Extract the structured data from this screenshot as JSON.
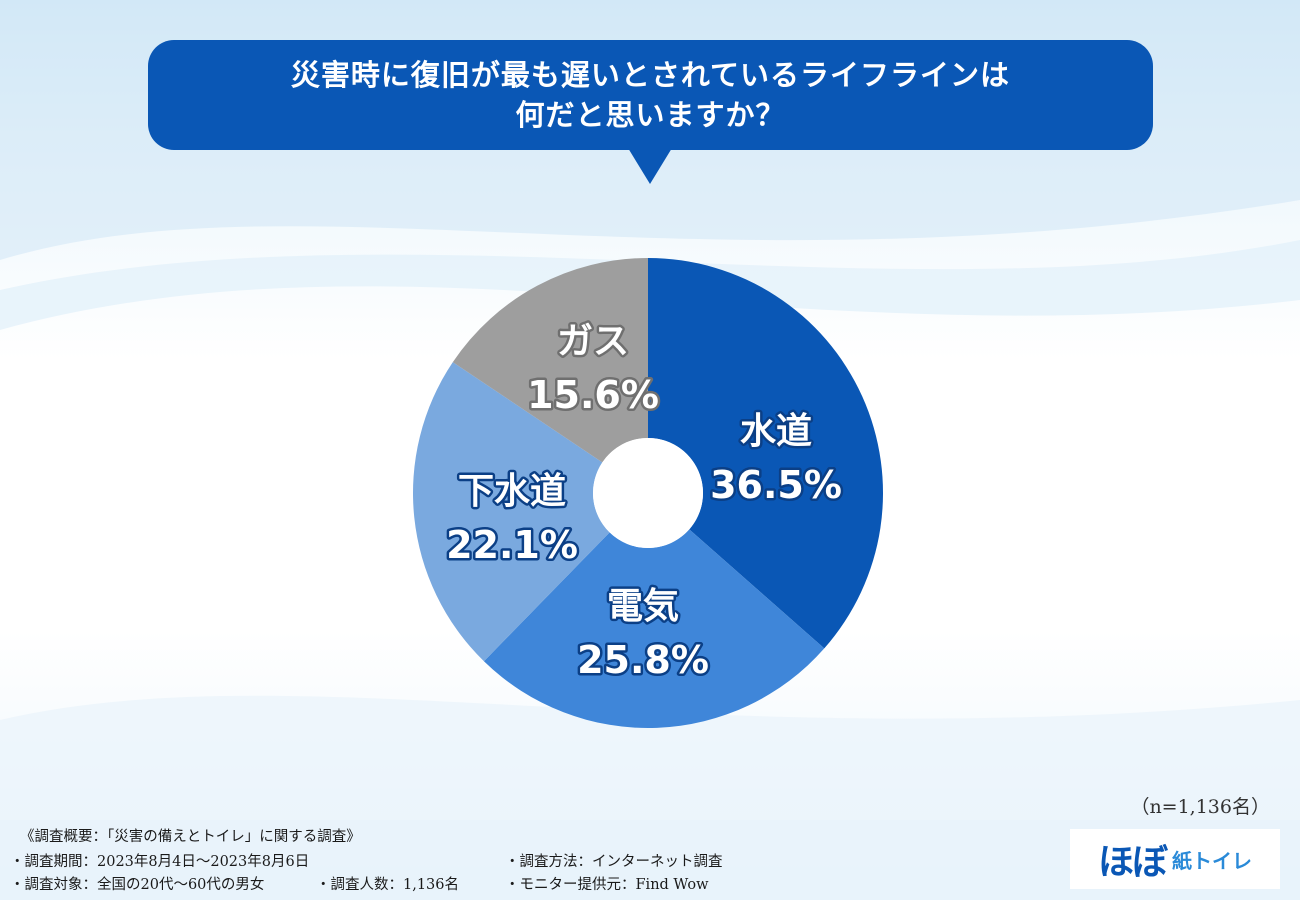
{
  "header": {
    "line1": "災害時に復旧が最も遅いとされているライフラインは",
    "line2": "何だと思いますか？"
  },
  "chart_data": {
    "type": "pie",
    "title": "災害時に復旧が最も遅いとされているライフラインは何だと思いますか？",
    "categories": [
      "水道",
      "電気",
      "下水道",
      "ガス"
    ],
    "values": [
      36.5,
      25.8,
      22.1,
      15.6
    ],
    "value_labels": [
      "36.5%",
      "25.8%",
      "22.1%",
      "15.6%"
    ],
    "colors": [
      "#0a57b5",
      "#3f86d9",
      "#7aa9df",
      "#9e9e9e"
    ],
    "start_angle_deg": 0,
    "direction": "clockwise",
    "donut_hole": true
  },
  "sample_size": "（n=1,136名）",
  "footer": {
    "title": "《調査概要：「災害の備えとトイレ」に関する調査》",
    "period": "・調査期間：2023年8月4日〜2023年8月6日",
    "target": "・調査対象：全国の20代〜60代の男女",
    "count": "・調査人数：1,136名",
    "method": "・調査方法：インターネット調査",
    "provider": "・モニター提供元：Find Wow"
  },
  "logo": {
    "main": "ほぼ",
    "sub": "紙トイレ"
  }
}
